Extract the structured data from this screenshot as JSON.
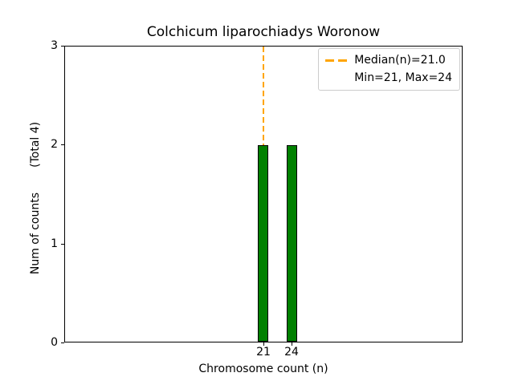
{
  "chart_data": {
    "type": "bar",
    "title": "Colchicum liparochiadys Woronow",
    "xlabel": "Chromosome count (n)",
    "ylabel": "Num of counts       (Total 4)",
    "total_counts": 4,
    "categories": [
      21,
      24
    ],
    "values": [
      2,
      2
    ],
    "xtick_labels": [
      "21",
      "24"
    ],
    "ytick_labels": [
      "0",
      "1",
      "2",
      "3"
    ],
    "ylim": [
      0,
      3
    ],
    "median": 21.0,
    "min": 21,
    "max": 24,
    "grid": false,
    "colors": {
      "bar_fill": "#008000",
      "bar_edge": "#000000",
      "median_line": "#FFA500",
      "axis": "#000000",
      "legend_border": "#cccccc",
      "background": "#ffffff"
    },
    "legend": {
      "position": "upper right",
      "entries": [
        {
          "label": "Median(n)=21.0",
          "swatch": "orange-dashed-line"
        },
        {
          "label": "Min=21, Max=24",
          "swatch": "none"
        }
      ]
    }
  }
}
